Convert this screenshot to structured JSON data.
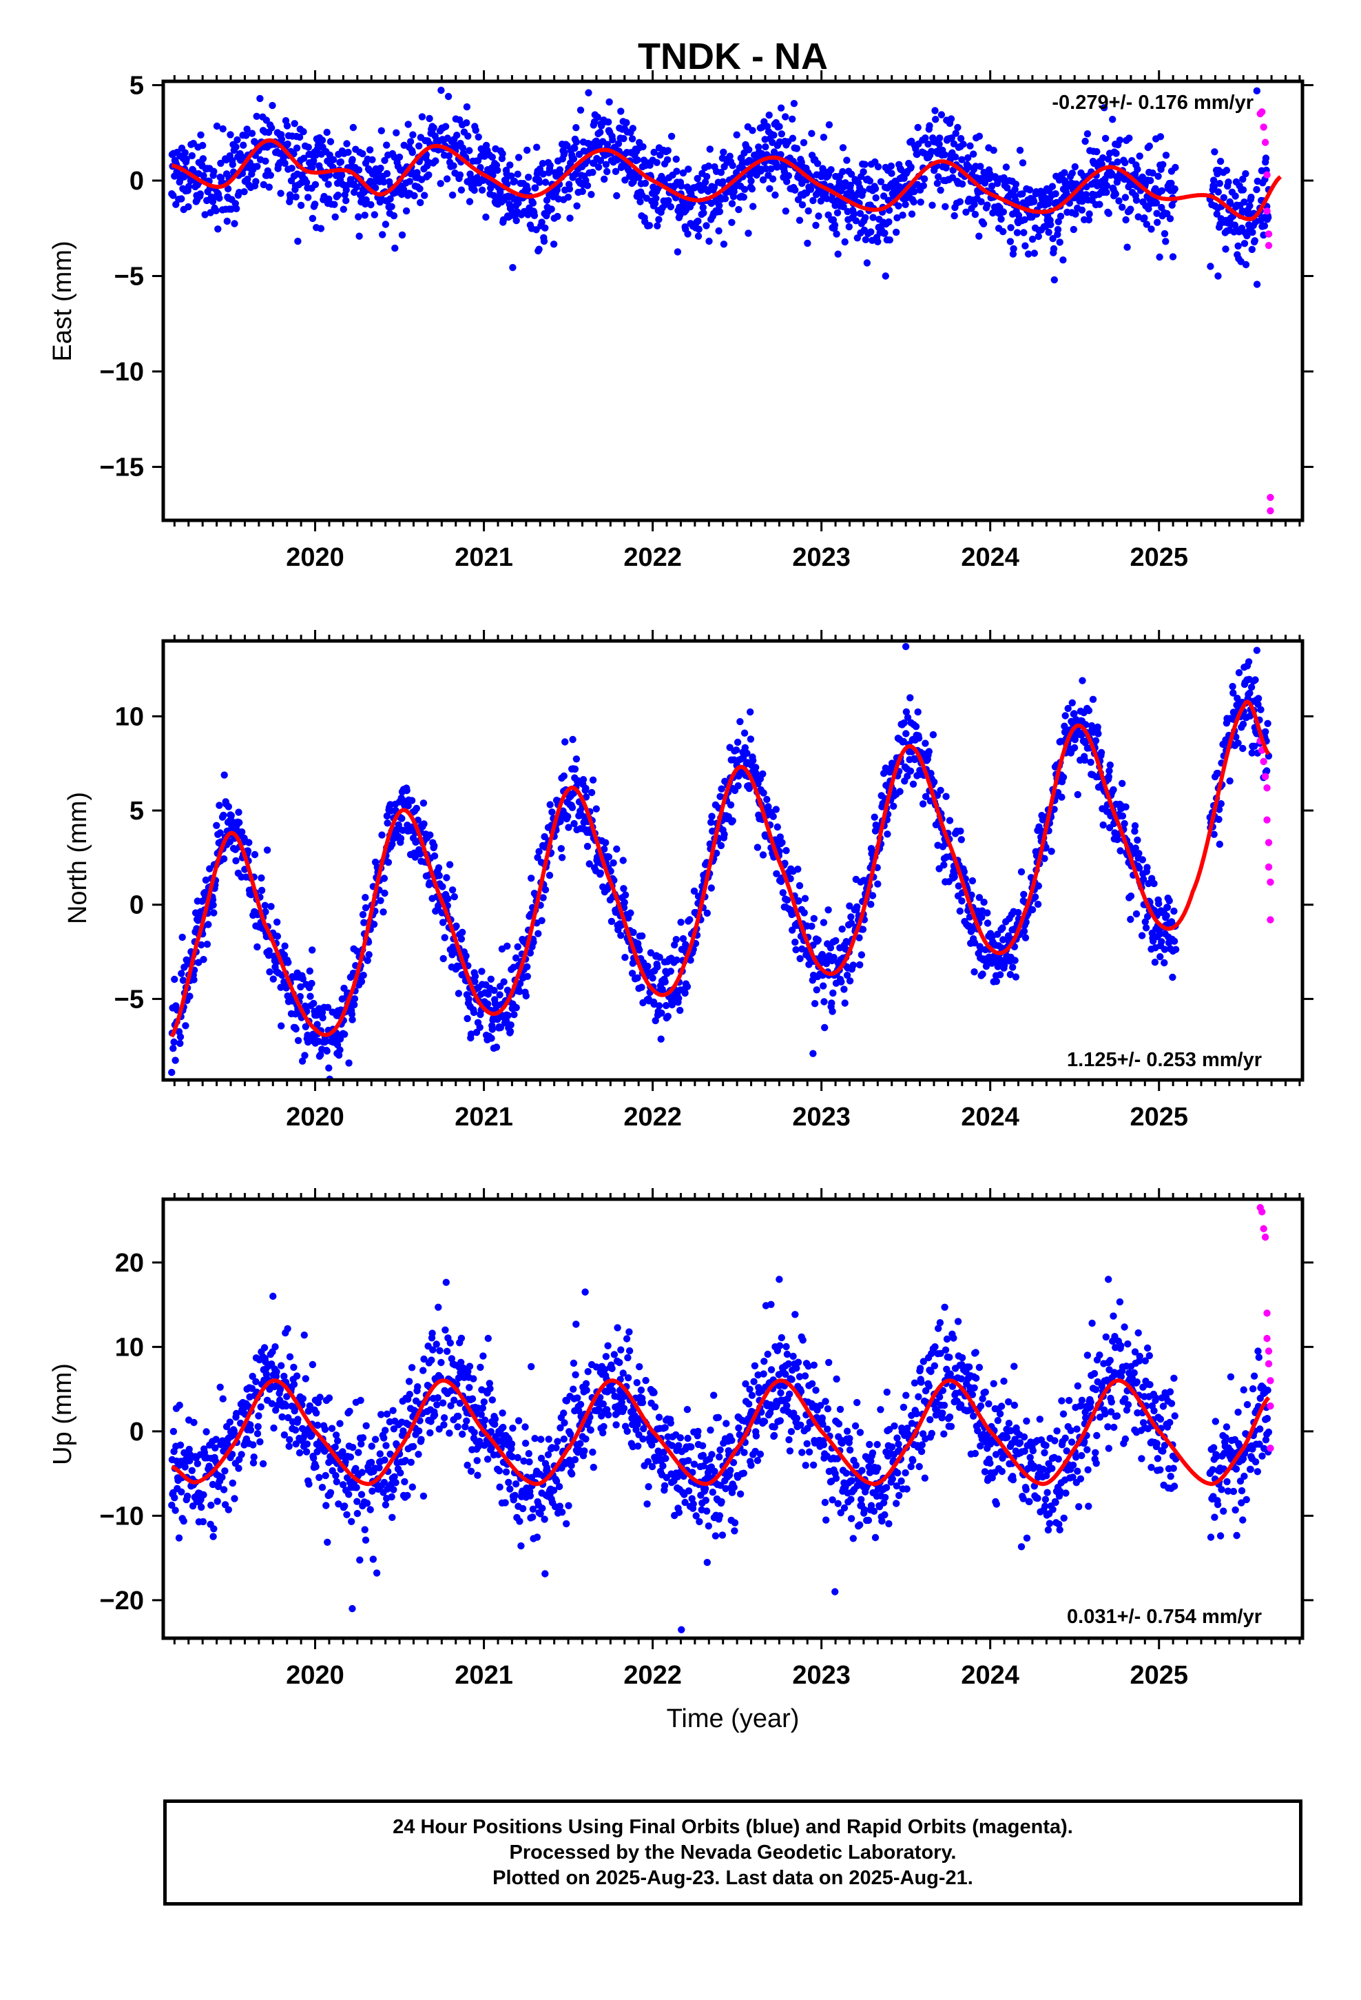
{
  "colors": {
    "final_orbits": "#0000ff",
    "rapid_orbits": "#ff00ff",
    "model_fit": "#ff0000",
    "frame": "#000000"
  },
  "footer": {
    "line1": "24 Hour Positions Using Final Orbits (blue) and Rapid Orbits (magenta).",
    "line2": "Processed by the Nevada Geodetic Laboratory.",
    "line3": "Plotted on 2025-Aug-23. Last data on 2025-Aug-21."
  },
  "chart_data": [
    {
      "type": "scatter",
      "title": "TNDK - NA",
      "ylabel": "East (mm)",
      "xlabel": "",
      "rate_text": "-0.279+/- 0.176 mm/yr",
      "rate_position": "top-right",
      "xlim": [
        2019.1,
        2025.85
      ],
      "ylim": [
        -17.8,
        5.2
      ],
      "x_ticks": [
        2020,
        2021,
        2022,
        2023,
        2024,
        2025
      ],
      "x_tick_labels": [
        "2020",
        "2021",
        "2022",
        "2023",
        "2024",
        "2025"
      ],
      "y_ticks": [
        5,
        0,
        -5,
        -10,
        -15
      ],
      "y_tick_labels": [
        "5",
        "0",
        "−5",
        "−10",
        "−15"
      ],
      "grid": false,
      "fit": {
        "series": "model_fit",
        "x": [
          2019.15,
          2019.45,
          2019.72,
          2019.95,
          2020.2,
          2020.4,
          2020.7,
          2021.0,
          2021.3,
          2021.7,
          2022.0,
          2022.3,
          2022.7,
          2023.0,
          2023.35,
          2023.7,
          2024.0,
          2024.35,
          2024.7,
          2025.0,
          2025.3,
          2025.55,
          2025.72
        ],
        "y": [
          0.8,
          -0.3,
          2.1,
          0.5,
          0.5,
          -0.7,
          1.8,
          0.3,
          -0.8,
          1.6,
          0.0,
          -1.0,
          1.2,
          -0.3,
          -1.5,
          1.0,
          -0.7,
          -1.6,
          0.7,
          -0.9,
          -0.8,
          -2.0,
          0.2
        ]
      },
      "final_orbits": {
        "x_range": [
          2019.15,
          2025.65
        ],
        "gaps": [
          [
            2025.1,
            2025.3
          ]
        ],
        "scatter_mm": 1.2,
        "outliers": [
          [
            2023.38,
            -5.0
          ],
          [
            2025.35,
            -5.0
          ],
          [
            2024.38,
            -5.2
          ],
          [
            2025.58,
            4.7
          ],
          [
            2021.62,
            4.6
          ]
        ]
      },
      "rapid_orbits": {
        "x": [
          2025.6,
          2025.61,
          2025.62,
          2025.63,
          2025.64,
          2025.64,
          2025.65,
          2025.65,
          2025.66,
          2025.66
        ],
        "y": [
          3.5,
          3.6,
          2.8,
          2.0,
          0.3,
          -1.6,
          -2.8,
          -3.4,
          -16.6,
          -17.3
        ]
      }
    },
    {
      "type": "scatter",
      "title": "",
      "ylabel": "North (mm)",
      "xlabel": "",
      "rate_text": "1.125+/- 0.253 mm/yr",
      "rate_position": "bottom-right",
      "xlim": [
        2019.1,
        2025.85
      ],
      "ylim": [
        -9.3,
        14.0
      ],
      "x_ticks": [
        2020,
        2021,
        2022,
        2023,
        2024,
        2025
      ],
      "x_tick_labels": [
        "2020",
        "2021",
        "2022",
        "2023",
        "2024",
        "2025"
      ],
      "y_ticks": [
        10,
        5,
        0,
        -5
      ],
      "y_tick_labels": [
        "10",
        "5",
        "0",
        "−5"
      ],
      "grid": false,
      "fit": {
        "series": "model_fit",
        "x": [
          2019.15,
          2019.3,
          2019.5,
          2019.7,
          2020.0,
          2020.2,
          2020.5,
          2020.75,
          2021.0,
          2021.2,
          2021.5,
          2021.75,
          2022.0,
          2022.2,
          2022.5,
          2022.75,
          2023.0,
          2023.2,
          2023.5,
          2023.75,
          2024.0,
          2024.2,
          2024.5,
          2024.75,
          2025.0,
          2025.2,
          2025.5,
          2025.65
        ],
        "y": [
          -7.0,
          -2.0,
          3.8,
          -1.0,
          -6.6,
          -5.0,
          4.9,
          0.2,
          -5.5,
          -3.8,
          6.1,
          1.2,
          -4.5,
          -2.8,
          7.2,
          2.3,
          -3.4,
          -1.6,
          8.3,
          3.4,
          -2.3,
          -0.5,
          9.4,
          4.5,
          -1.0,
          0.7,
          10.5,
          8.0
        ]
      },
      "final_orbits": {
        "x_range": [
          2019.15,
          2025.65
        ],
        "gaps": [
          [
            2025.1,
            2025.3
          ]
        ],
        "scatter_mm": 1.1,
        "outliers": [
          [
            2019.15,
            -8.9
          ],
          [
            2023.5,
            13.7
          ],
          [
            2025.58,
            13.5
          ],
          [
            2022.95,
            -7.9
          ],
          [
            2020.2,
            -8.4
          ]
        ]
      },
      "rapid_orbits": {
        "x": [
          2025.6,
          2025.61,
          2025.62,
          2025.63,
          2025.64,
          2025.64,
          2025.65,
          2025.65,
          2025.66,
          2025.66
        ],
        "y": [
          8.7,
          8.2,
          7.6,
          6.8,
          6.2,
          4.5,
          3.3,
          2.0,
          1.2,
          -0.8
        ]
      }
    },
    {
      "type": "scatter",
      "title": "",
      "ylabel": "Up (mm)",
      "xlabel": "Time (year)",
      "rate_text": "0.031+/- 0.754 mm/yr",
      "rate_position": "bottom-right",
      "xlim": [
        2019.1,
        2025.85
      ],
      "ylim": [
        -24.5,
        27.5
      ],
      "x_ticks": [
        2020,
        2021,
        2022,
        2023,
        2024,
        2025
      ],
      "x_tick_labels": [
        "2020",
        "2021",
        "2022",
        "2023",
        "2024",
        "2025"
      ],
      "y_ticks": [
        20,
        10,
        0,
        -10,
        -20
      ],
      "y_tick_labels": [
        "20",
        "10",
        "0",
        "−10",
        "−20"
      ],
      "grid": false,
      "fit": {
        "series": "model_fit",
        "x": [
          2019.15,
          2019.3,
          2019.5,
          2019.75,
          2020.0,
          2020.3,
          2020.5,
          2020.75,
          2021.0,
          2021.3,
          2021.5,
          2021.75,
          2022.0,
          2022.3,
          2022.5,
          2022.75,
          2023.0,
          2023.3,
          2023.5,
          2023.75,
          2024.0,
          2024.3,
          2024.5,
          2024.75,
          2025.0,
          2025.3,
          2025.5,
          2025.65
        ],
        "y": [
          -4.2,
          -6.0,
          -2.0,
          6.0,
          0.0,
          -6.2,
          -2.0,
          6.0,
          0.0,
          -6.2,
          -2.0,
          6.0,
          0.0,
          -6.2,
          -2.0,
          6.0,
          0.0,
          -6.2,
          -2.0,
          6.0,
          0.0,
          -6.2,
          -2.0,
          6.0,
          0.0,
          -6.2,
          -2.0,
          4.0
        ]
      },
      "final_orbits": {
        "x_range": [
          2019.15,
          2025.65
        ],
        "gaps": [
          [
            2025.1,
            2025.3
          ]
        ],
        "scatter_mm": 3.6,
        "outliers": [
          [
            2022.17,
            -23.5
          ],
          [
            2020.22,
            -21.0
          ],
          [
            2023.08,
            -19.0
          ],
          [
            2021.6,
            16.5
          ],
          [
            2024.7,
            18.0
          ],
          [
            2022.75,
            18.0
          ],
          [
            2019.75,
            16.0
          ]
        ]
      },
      "rapid_orbits": {
        "x": [
          2025.6,
          2025.61,
          2025.62,
          2025.63,
          2025.64,
          2025.64,
          2025.65,
          2025.65,
          2025.66,
          2025.66,
          2025.66
        ],
        "y": [
          26.5,
          26.0,
          24.0,
          23.0,
          14.0,
          11.0,
          9.5,
          8.0,
          6.0,
          3.0,
          -2.0
        ]
      }
    }
  ]
}
